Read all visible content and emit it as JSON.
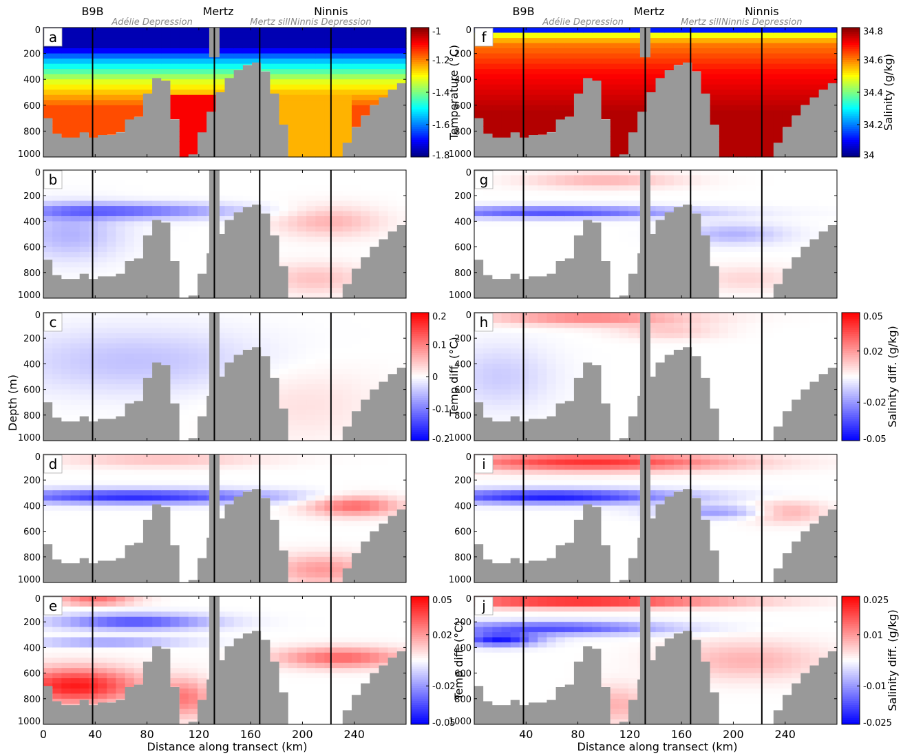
{
  "figure": {
    "top_labels": {
      "sites": [
        "B9B",
        "Mertz",
        "Ninnis"
      ],
      "regions": [
        "Adélie Depression",
        "Mertz sill",
        "Ninnis Depression"
      ]
    },
    "ylabel": "Depth (m)",
    "xlabel": "Distance along transect (km)",
    "colors": {
      "land": "#999999",
      "frame": "#000000"
    }
  },
  "chart_data": [
    {
      "type": "heatmap",
      "columns": {
        "left": {
          "panels": [
            "a",
            "b",
            "c",
            "d",
            "e"
          ],
          "x_ticks": [
            0,
            40,
            80,
            120,
            160,
            200,
            240
          ]
        },
        "right": {
          "panels": [
            "f",
            "g",
            "h",
            "i",
            "j"
          ],
          "x_ticks": [
            40,
            80,
            120,
            160,
            200,
            240
          ]
        }
      },
      "xlim": [
        0,
        280
      ],
      "ylim": [
        1000,
        0
      ],
      "y_ticks": [
        0,
        200,
        400,
        600,
        800,
        1000
      ],
      "vertical_lines_km": [
        38,
        132,
        167,
        222
      ],
      "colorbars": [
        {
          "panels": [
            "a"
          ],
          "label": "Temperature (°C)",
          "range": [
            -1.8,
            -1
          ],
          "ticks": [
            "-1",
            "-1.2",
            "-1.4",
            "-1.6",
            "-1.8"
          ],
          "colormap": "jet"
        },
        {
          "panels": [
            "b",
            "c",
            "d"
          ],
          "label": "Temp diff. (°C)",
          "range": [
            -0.2,
            0.2
          ],
          "ticks": [
            "0.2",
            "0.1",
            "0",
            "-0.1",
            "-0.2"
          ],
          "colormap": "bwr"
        },
        {
          "panels": [
            "e"
          ],
          "label": "Temp diff. (°C)",
          "range": [
            -0.05,
            0.05
          ],
          "ticks": [
            "0.05",
            "0.02",
            "-0.02",
            "-0.05"
          ],
          "colormap": "bwr"
        },
        {
          "panels": [
            "f"
          ],
          "label": "Salinity (g/kg)",
          "range": [
            34,
            34.8
          ],
          "ticks": [
            "34.8",
            "34.6",
            "34.4",
            "34.2",
            "34"
          ],
          "colormap": "jet"
        },
        {
          "panels": [
            "g",
            "h",
            "i"
          ],
          "label": "Salinity diff. (g/kg)",
          "range": [
            -0.05,
            0.05
          ],
          "ticks": [
            "0.05",
            "0.02",
            "-0.02",
            "-0.05"
          ],
          "colormap": "bwr"
        },
        {
          "panels": [
            "j"
          ],
          "label": "Salinity diff. (g/kg)",
          "range": [
            -0.025,
            0.025
          ],
          "ticks": [
            "0.025",
            "0.01",
            "-0.01",
            "-0.025"
          ],
          "colormap": "bwr"
        }
      ],
      "bathymetry": {
        "x_km": [
          0,
          4,
          8,
          15,
          25,
          30,
          38,
          42,
          50,
          55,
          60,
          65,
          70,
          75,
          80,
          85,
          90,
          95,
          100,
          103,
          108,
          115,
          118,
          122,
          126,
          130,
          134,
          138,
          142,
          146,
          150,
          155,
          160,
          165,
          168,
          172,
          176,
          180,
          184,
          188,
          192,
          196,
          200,
          206,
          212,
          218,
          222,
          226,
          230,
          234,
          238,
          242,
          246,
          250,
          255,
          260,
          265,
          270,
          275,
          280
        ],
        "bottom_depth_m": [
          700,
          700,
          800,
          850,
          850,
          800,
          850,
          850,
          800,
          850,
          800,
          720,
          700,
          680,
          520,
          420,
          360,
          420,
          560,
          850,
          1000,
          1000,
          900,
          820,
          730,
          640,
          560,
          470,
          410,
          360,
          330,
          300,
          270,
          270,
          300,
          340,
          420,
          560,
          700,
          840,
          1000,
          1000,
          1000,
          1000,
          1000,
          1000,
          1000,
          1000,
          1000,
          900,
          800,
          760,
          720,
          650,
          600,
          560,
          520,
          480,
          440,
          400
        ]
      },
      "mertz_tongue": {
        "x_km": [
          128,
          136
        ],
        "draft_m": 230
      },
      "fields_note_left": [
        "a",
        "b",
        "c",
        "d",
        "e"
      ],
      "fields_note_right": [
        "f",
        "g",
        "h",
        "i",
        "j"
      ]
    }
  ]
}
